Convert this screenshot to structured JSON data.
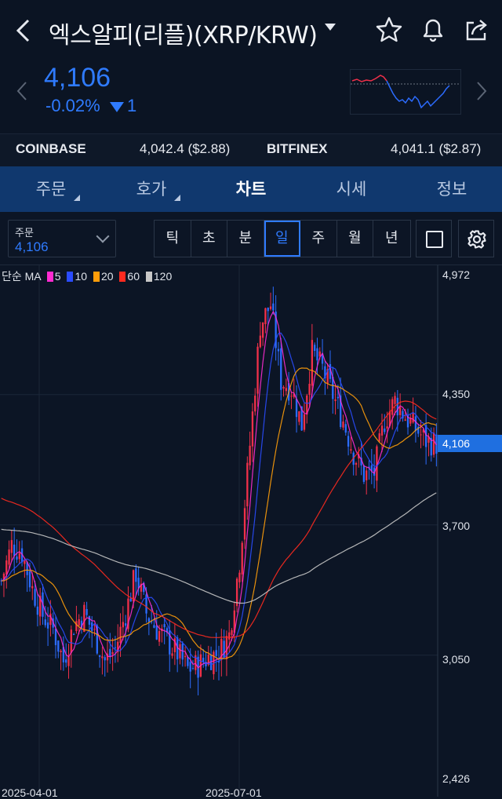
{
  "header": {
    "title": "엑스알피(리플)(XRP/KRW)",
    "icons": [
      "back-arrow-icon",
      "star-icon",
      "bell-icon",
      "share-icon"
    ]
  },
  "quote": {
    "price": "4,106",
    "change_pct": "-0.02%",
    "change_abs": "1",
    "color_down": "#2f7bff"
  },
  "exchanges": [
    {
      "name": "COINBASE",
      "value": "4,042.4 ($2.88)"
    },
    {
      "name": "BITFINEX",
      "value": "4,041.1 ($2.87)"
    }
  ],
  "tabs": [
    {
      "label": "주문",
      "active": false
    },
    {
      "label": "호가",
      "active": false
    },
    {
      "label": "차트",
      "active": true
    },
    {
      "label": "시세",
      "active": false
    },
    {
      "label": "정보",
      "active": false
    }
  ],
  "toolbar": {
    "order_label": "주문",
    "order_value": "4,106",
    "periods": [
      "틱",
      "초",
      "분",
      "일",
      "주",
      "월",
      "년"
    ],
    "active_period": "일"
  },
  "chart_data": {
    "type": "candlestick",
    "ma_type": "단순 MA",
    "ma": [
      {
        "name": "5",
        "color": "#ff2bd1"
      },
      {
        "name": "10",
        "color": "#2a4cff"
      },
      {
        "name": "20",
        "color": "#ff9d0a"
      },
      {
        "name": "60",
        "color": "#ff2a1f"
      },
      {
        "name": "120",
        "color": "#c8c8c8"
      }
    ],
    "y_ticks": [
      "4,972",
      "4,350",
      "3,700",
      "3,050",
      "2,426"
    ],
    "y_tick_values": [
      4972,
      4350,
      3700,
      3050,
      2426
    ],
    "ylim": [
      2426,
      4972
    ],
    "x_ticks": [
      "2025-04-01",
      "2025-07-01"
    ],
    "current_price_label": "4,106",
    "current_price": 4106,
    "up_color": "#f0304a",
    "down_color": "#2c6cff",
    "grid": true
  }
}
